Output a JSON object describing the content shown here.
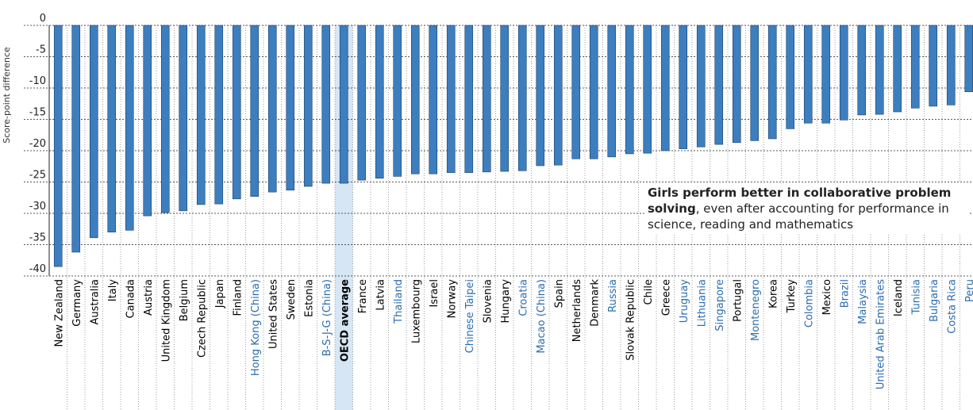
{
  "chart_data": {
    "type": "bar",
    "y_label": "Score-point difference",
    "categories": [
      "New Zealand",
      "Germany",
      "Australia",
      "Italy",
      "Canada",
      "Austria",
      "United Kingdom",
      "Belgium",
      "Czech Republic",
      "Japan",
      "Finland",
      "Hong Kong (China)",
      "United States",
      "Sweden",
      "Estonia",
      "B-S-J-G (China)",
      "OECD average",
      "France",
      "Latvia",
      "Thailand",
      "Luxembourg",
      "Israel",
      "Norway",
      "Chinese Taipei",
      "Slovenia",
      "Hungary",
      "Croatia",
      "Macao (China)",
      "Spain",
      "Netherlands",
      "Denmark",
      "Russia",
      "Slovak Republic",
      "Chile",
      "Greece",
      "Uruguay",
      "Lithuania",
      "Singapore",
      "Portugal",
      "Montenegro",
      "Korea",
      "Turkey",
      "Colombia",
      "Mexico",
      "Brazil",
      "Malaysia",
      "United Arab Emirates",
      "Iceland",
      "Tunisia",
      "Bulgaria",
      "Costa Rica",
      "Peru"
    ],
    "values": [
      -38.5,
      -36.2,
      -33.9,
      -33.0,
      -32.7,
      -30.4,
      -29.9,
      -29.6,
      -28.6,
      -28.5,
      -27.7,
      -27.3,
      -26.6,
      -26.3,
      -25.7,
      -25.2,
      -25.2,
      -24.7,
      -24.4,
      -24.1,
      -23.7,
      -23.7,
      -23.5,
      -23.5,
      -23.4,
      -23.3,
      -23.2,
      -22.4,
      -22.3,
      -21.3,
      -21.3,
      -21.0,
      -20.5,
      -20.4,
      -20.0,
      -19.7,
      -19.4,
      -19.0,
      -18.7,
      -18.4,
      -18.1,
      -16.5,
      -15.6,
      -15.6,
      -15.1,
      -14.3,
      -14.2,
      -13.8,
      -13.2,
      -12.9,
      -12.7,
      -10.6
    ],
    "category_colors": [
      "#000000",
      "#000000",
      "#000000",
      "#000000",
      "#000000",
      "#000000",
      "#000000",
      "#000000",
      "#000000",
      "#000000",
      "#000000",
      "#2b6cb0",
      "#000000",
      "#000000",
      "#000000",
      "#2b6cb0",
      "#000000",
      "#000000",
      "#000000",
      "#2b6cb0",
      "#000000",
      "#000000",
      "#000000",
      "#2b6cb0",
      "#000000",
      "#000000",
      "#2b6cb0",
      "#2b6cb0",
      "#000000",
      "#000000",
      "#000000",
      "#2b6cb0",
      "#000000",
      "#000000",
      "#000000",
      "#2b6cb0",
      "#2b6cb0",
      "#2b6cb0",
      "#000000",
      "#2b6cb0",
      "#000000",
      "#000000",
      "#2b6cb0",
      "#000000",
      "#2b6cb0",
      "#2b6cb0",
      "#2b6cb0",
      "#000000",
      "#2b6cb0",
      "#2b6cb0",
      "#2b6cb0",
      "#2b6cb0"
    ],
    "highlight": "OECD average",
    "color": "#3d7ebf",
    "ylim": [
      -40,
      0
    ],
    "yticks": [
      0,
      -5,
      -10,
      -15,
      -20,
      -25,
      -30,
      -35,
      -40
    ],
    "grid": true,
    "annotation": {
      "bold": "Girls perform better in collaborative problem solving",
      "text": ", even after accounting for performance in science, reading and mathematics"
    }
  }
}
